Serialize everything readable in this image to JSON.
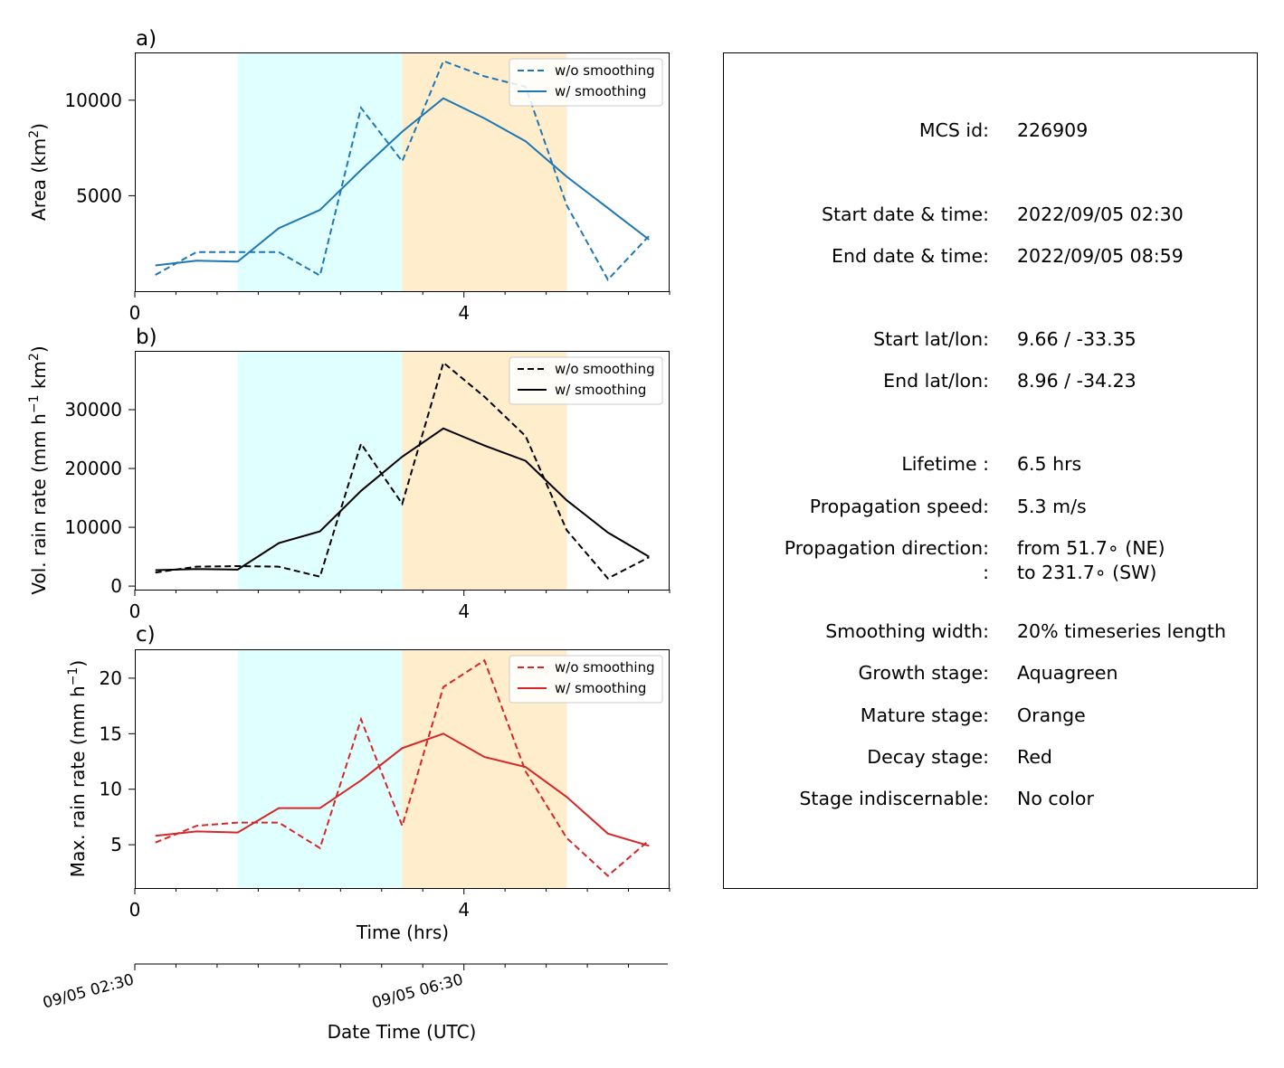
{
  "chart_data": [
    {
      "type": "line",
      "panel_label": "a)",
      "ylabel": "Area  (km²)",
      "ylabel_parts": {
        "text": "Area  (km",
        "sup": "2",
        "end": ")"
      },
      "x": [
        0.25,
        0.75,
        1.25,
        1.75,
        2.25,
        2.75,
        3.25,
        3.75,
        4.25,
        4.75,
        5.25,
        5.75,
        6.25
      ],
      "xlim": [
        0,
        6.5
      ],
      "ylim": [
        0,
        12500
      ],
      "yticks": [
        5000,
        10000
      ],
      "ytick_labels": [
        "5000",
        "10000"
      ],
      "xticks": [
        0,
        4
      ],
      "xtick_labels": [
        "0",
        "4"
      ],
      "color": "#1f77b4",
      "legend_position": "top-right",
      "series": [
        {
          "name": "w/o smoothing",
          "style": "dashed",
          "values": [
            850,
            2050,
            2050,
            2050,
            820,
            9600,
            6800,
            12050,
            11250,
            10700,
            4500,
            600,
            2900
          ]
        },
        {
          "name": "w/ smoothing",
          "style": "solid",
          "values": [
            1350,
            1600,
            1550,
            3300,
            4250,
            6350,
            8350,
            10100,
            9050,
            7850,
            6000,
            4350,
            2700
          ]
        }
      ]
    },
    {
      "type": "line",
      "panel_label": "b)",
      "ylabel": "Vol. rain rate (mm h⁻¹ km²)",
      "ylabel_parts": {
        "text": "Vol. rain rate (mm h",
        "sup": "−1",
        "mid": " km",
        "sup2": "2",
        "end": ")"
      },
      "x": [
        0.25,
        0.75,
        1.25,
        1.75,
        2.25,
        2.75,
        3.25,
        3.75,
        4.25,
        4.75,
        5.25,
        5.75,
        6.25
      ],
      "xlim": [
        0,
        6.5
      ],
      "ylim": [
        -600,
        40000
      ],
      "yticks": [
        0,
        10000,
        20000,
        30000
      ],
      "ytick_labels": [
        "0",
        "10000",
        "20000",
        "30000"
      ],
      "xticks": [
        0,
        4
      ],
      "xtick_labels": [
        "0",
        "4"
      ],
      "color": "#000000",
      "legend_position": "top-right",
      "series": [
        {
          "name": "w/o smoothing",
          "style": "dashed",
          "values": [
            2300,
            3300,
            3400,
            3300,
            1600,
            24200,
            14000,
            38000,
            32200,
            25500,
            9500,
            1300,
            4900
          ]
        },
        {
          "name": "w/ smoothing",
          "style": "solid",
          "values": [
            2700,
            2900,
            2800,
            7300,
            9300,
            16200,
            22000,
            26800,
            23900,
            21300,
            14600,
            9100,
            5000
          ]
        }
      ]
    },
    {
      "type": "line",
      "panel_label": "c)",
      "ylabel": "Max. rain rate  (mm h⁻¹)",
      "ylabel_parts": {
        "text": "Max. rain rate  (mm h",
        "sup": "−1",
        "end": ")"
      },
      "x": [
        0.25,
        0.75,
        1.25,
        1.75,
        2.25,
        2.75,
        3.25,
        3.75,
        4.25,
        4.75,
        5.25,
        5.75,
        6.25
      ],
      "xlim": [
        0,
        6.5
      ],
      "ylim": [
        1.1,
        22.6
      ],
      "yticks": [
        5,
        10,
        15,
        20
      ],
      "ytick_labels": [
        "5",
        "10",
        "15",
        "20"
      ],
      "xticks": [
        0,
        4
      ],
      "xtick_labels": [
        "0",
        "4"
      ],
      "xlabel": "Time (hrs)",
      "color": "#d62728",
      "legend_position": "top-right",
      "series": [
        {
          "name": "w/o smoothing",
          "style": "dashed",
          "values": [
            5.2,
            6.7,
            7.0,
            7.0,
            4.7,
            16.3,
            6.7,
            19.2,
            21.6,
            11.6,
            5.6,
            2.2,
            5.4
          ]
        },
        {
          "name": "w/ smoothing",
          "style": "solid",
          "values": [
            5.8,
            6.2,
            6.1,
            8.3,
            8.3,
            10.8,
            13.7,
            15.0,
            12.9,
            12.0,
            9.3,
            6.0,
            4.9
          ]
        }
      ]
    }
  ],
  "stages": {
    "growth": {
      "from": 1.25,
      "to": 3.25,
      "color": "#e0ffff"
    },
    "mature": {
      "from": 3.25,
      "to": 5.25,
      "color": "#ffedcc"
    }
  },
  "date_axis": {
    "label": "Date Time (UTC)",
    "tick_labels": [
      "09/05 02:30",
      "09/05 06:30"
    ],
    "tick_values": [
      0,
      4
    ]
  },
  "info": {
    "rows": [
      {
        "key": "MCS id:",
        "value": "226909"
      },
      {
        "key": "Start date & time:",
        "value": "2022/09/05 02:30"
      },
      {
        "key": "End date & time:",
        "value": "2022/09/05 08:59"
      },
      {
        "key": "Start lat/lon:",
        "value": "9.66 / -33.35"
      },
      {
        "key": "End lat/lon:",
        "value": "8.96 / -34.23"
      },
      {
        "key": "Lifetime :",
        "value": "6.5 hrs"
      },
      {
        "key": "Propagation speed:",
        "value": "5.3 m/s"
      },
      {
        "key": "Propagation direction:",
        "value": "from  51.7∘ (NE)"
      },
      {
        "key": ":",
        "value": "to   231.7∘ (SW)"
      },
      {
        "key": "Smoothing width:",
        "value": "20% timeseries length"
      },
      {
        "key": "Growth stage:",
        "value": "Aquagreen"
      },
      {
        "key": "Mature stage:",
        "value": "Orange"
      },
      {
        "key": "Decay stage:",
        "value": "Red"
      },
      {
        "key": "Stage indiscernable:",
        "value": "No color"
      }
    ]
  }
}
